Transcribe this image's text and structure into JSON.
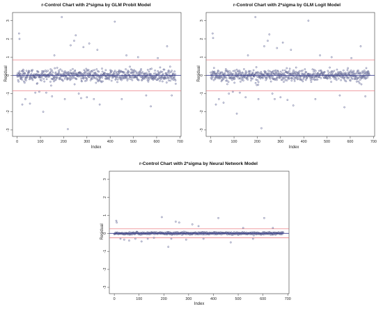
{
  "chart_data": [
    {
      "type": "scatter",
      "title": "r-Control Chart with 2*sigma by GLM Probit Model",
      "xlabel": "Index",
      "ylabel": "Residual",
      "xlim": [
        -20,
        705
      ],
      "ylim": [
        -3.35,
        3.45
      ],
      "x_ticks": [
        0,
        100,
        200,
        300,
        400,
        500,
        600,
        700
      ],
      "y_ticks": [
        -3,
        -2,
        -1,
        0,
        1,
        2,
        3
      ],
      "control_limits": {
        "upper": 0.85,
        "center": 0,
        "lower": -0.85
      },
      "band_sigma": 0.16,
      "n_points": 683,
      "outliers": [
        {
          "x": 8,
          "y": 2.3
        },
        {
          "x": 10,
          "y": 2.0
        },
        {
          "x": 22,
          "y": -1.6
        },
        {
          "x": 35,
          "y": -1.3
        },
        {
          "x": 55,
          "y": -1.55
        },
        {
          "x": 78,
          "y": -0.95
        },
        {
          "x": 95,
          "y": -0.9
        },
        {
          "x": 112,
          "y": -2.0
        },
        {
          "x": 125,
          "y": -0.95
        },
        {
          "x": 150,
          "y": -1.15
        },
        {
          "x": 160,
          "y": 1.1
        },
        {
          "x": 192,
          "y": 3.2
        },
        {
          "x": 205,
          "y": -1.3
        },
        {
          "x": 218,
          "y": -2.95
        },
        {
          "x": 230,
          "y": 1.65
        },
        {
          "x": 245,
          "y": 1.9
        },
        {
          "x": 252,
          "y": 2.2
        },
        {
          "x": 265,
          "y": -1.0
        },
        {
          "x": 275,
          "y": -1.25
        },
        {
          "x": 285,
          "y": 1.55
        },
        {
          "x": 300,
          "y": -1.2
        },
        {
          "x": 310,
          "y": 1.75
        },
        {
          "x": 330,
          "y": -1.3
        },
        {
          "x": 345,
          "y": 1.4
        },
        {
          "x": 355,
          "y": -1.6
        },
        {
          "x": 420,
          "y": 2.95
        },
        {
          "x": 450,
          "y": -1.3
        },
        {
          "x": 470,
          "y": 1.1
        },
        {
          "x": 520,
          "y": 1.0
        },
        {
          "x": 555,
          "y": -1.1
        },
        {
          "x": 575,
          "y": -1.7
        },
        {
          "x": 605,
          "y": 0.95
        },
        {
          "x": 645,
          "y": 1.6
        },
        {
          "x": 665,
          "y": -1.1
        }
      ]
    },
    {
      "type": "scatter",
      "title": "r-Control Chart with 2*sigma by GLM Logit Model",
      "xlabel": "Index",
      "ylabel": "Residual",
      "xlim": [
        -20,
        705
      ],
      "ylim": [
        -3.35,
        3.45
      ],
      "x_ticks": [
        0,
        100,
        200,
        300,
        400,
        500,
        600,
        700
      ],
      "y_ticks": [
        -3,
        -2,
        -1,
        0,
        1,
        2,
        3
      ],
      "control_limits": {
        "upper": 0.85,
        "center": 0,
        "lower": -0.85
      },
      "band_sigma": 0.16,
      "n_points": 683,
      "outliers": [
        {
          "x": 8,
          "y": 2.3
        },
        {
          "x": 10,
          "y": 2.05
        },
        {
          "x": 22,
          "y": -1.6
        },
        {
          "x": 35,
          "y": -1.3
        },
        {
          "x": 55,
          "y": -1.5
        },
        {
          "x": 78,
          "y": -1.0
        },
        {
          "x": 95,
          "y": -0.9
        },
        {
          "x": 112,
          "y": -2.1
        },
        {
          "x": 125,
          "y": -0.95
        },
        {
          "x": 150,
          "y": -1.2
        },
        {
          "x": 160,
          "y": 1.1
        },
        {
          "x": 192,
          "y": 3.2
        },
        {
          "x": 205,
          "y": -1.3
        },
        {
          "x": 218,
          "y": -2.9
        },
        {
          "x": 230,
          "y": 1.6
        },
        {
          "x": 245,
          "y": 1.9
        },
        {
          "x": 252,
          "y": 2.25
        },
        {
          "x": 265,
          "y": -1.0
        },
        {
          "x": 275,
          "y": -1.3
        },
        {
          "x": 285,
          "y": 1.5
        },
        {
          "x": 300,
          "y": -1.2
        },
        {
          "x": 310,
          "y": 1.8
        },
        {
          "x": 330,
          "y": -1.35
        },
        {
          "x": 345,
          "y": 1.4
        },
        {
          "x": 355,
          "y": -1.65
        },
        {
          "x": 420,
          "y": 3.0
        },
        {
          "x": 450,
          "y": -1.3
        },
        {
          "x": 470,
          "y": 1.1
        },
        {
          "x": 520,
          "y": 1.0
        },
        {
          "x": 555,
          "y": -1.1
        },
        {
          "x": 575,
          "y": -1.75
        },
        {
          "x": 605,
          "y": 0.95
        },
        {
          "x": 645,
          "y": 1.6
        },
        {
          "x": 665,
          "y": -1.15
        }
      ]
    },
    {
      "type": "scatter",
      "title": "r-Control Chart with 2*sigma by Neural Network Model",
      "xlabel": "Index",
      "ylabel": "Residual",
      "xlim": [
        -20,
        705
      ],
      "ylim": [
        -3.35,
        3.45
      ],
      "x_ticks": [
        0,
        100,
        200,
        300,
        400,
        500,
        600,
        700
      ],
      "y_ticks": [
        -3,
        -2,
        -1,
        0,
        1,
        2,
        3
      ],
      "control_limits": {
        "upper": 0.25,
        "center": 0,
        "lower": -0.25
      },
      "band_sigma": 0.035,
      "n_points": 683,
      "outliers": [
        {
          "x": 8,
          "y": 0.7
        },
        {
          "x": 10,
          "y": 0.6
        },
        {
          "x": 25,
          "y": -0.3
        },
        {
          "x": 40,
          "y": -0.35
        },
        {
          "x": 60,
          "y": -0.4
        },
        {
          "x": 85,
          "y": -0.3
        },
        {
          "x": 110,
          "y": -0.45
        },
        {
          "x": 135,
          "y": -0.3
        },
        {
          "x": 160,
          "y": -0.25
        },
        {
          "x": 192,
          "y": 0.9
        },
        {
          "x": 218,
          "y": -0.75
        },
        {
          "x": 230,
          "y": -0.3
        },
        {
          "x": 248,
          "y": 0.65
        },
        {
          "x": 262,
          "y": 0.6
        },
        {
          "x": 290,
          "y": -0.35
        },
        {
          "x": 315,
          "y": 0.5
        },
        {
          "x": 340,
          "y": 0.4
        },
        {
          "x": 360,
          "y": -0.3
        },
        {
          "x": 420,
          "y": 0.85
        },
        {
          "x": 470,
          "y": -0.5
        },
        {
          "x": 520,
          "y": 0.3
        },
        {
          "x": 560,
          "y": -0.3
        },
        {
          "x": 605,
          "y": 0.85
        },
        {
          "x": 640,
          "y": 0.3
        }
      ]
    }
  ],
  "colors": {
    "control_limit": "#e8696f",
    "center_line": "#3b3f8f",
    "point_stroke": "#2a2d5c",
    "point_fill": "#b8bde0",
    "axis": "#333333"
  }
}
